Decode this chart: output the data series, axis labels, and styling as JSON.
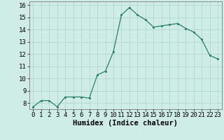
{
  "x": [
    0,
    1,
    2,
    3,
    4,
    5,
    6,
    7,
    8,
    9,
    10,
    11,
    12,
    13,
    14,
    15,
    16,
    17,
    18,
    19,
    20,
    21,
    22,
    23
  ],
  "y": [
    7.7,
    8.2,
    8.2,
    7.7,
    8.5,
    8.5,
    8.5,
    8.4,
    10.3,
    10.6,
    12.2,
    15.2,
    15.8,
    15.2,
    14.8,
    14.2,
    14.3,
    14.4,
    14.5,
    14.1,
    13.8,
    13.2,
    11.9,
    11.6
  ],
  "xlabel": "Humidex (Indice chaleur)",
  "xlim": [
    -0.5,
    23.5
  ],
  "ylim": [
    7.5,
    16.3
  ],
  "yticks": [
    8,
    9,
    10,
    11,
    12,
    13,
    14,
    15,
    16
  ],
  "xticks": [
    0,
    1,
    2,
    3,
    4,
    5,
    6,
    7,
    8,
    9,
    10,
    11,
    12,
    13,
    14,
    15,
    16,
    17,
    18,
    19,
    20,
    21,
    22,
    23
  ],
  "line_color": "#2a7d6e",
  "marker_color": "#2a7d6e",
  "bg_color": "#d0ece6",
  "grid_color": "#aad4cc",
  "tick_fontsize": 6.5,
  "label_fontsize": 7.5
}
